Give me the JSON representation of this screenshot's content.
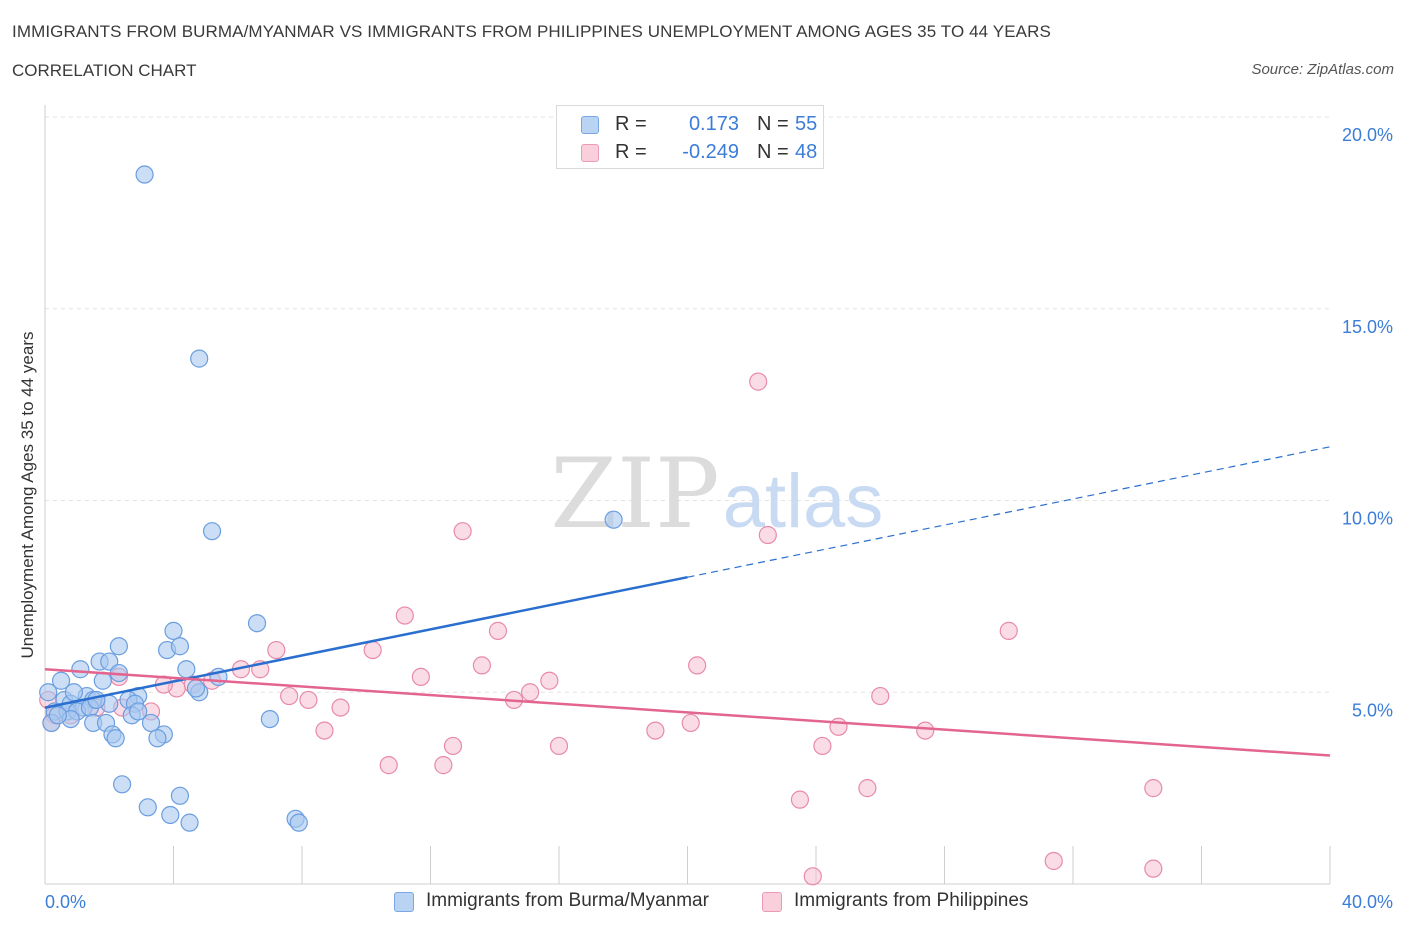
{
  "header": {
    "title": "IMMIGRANTS FROM BURMA/MYANMAR VS IMMIGRANTS FROM PHILIPPINES UNEMPLOYMENT AMONG AGES 35 TO 44 YEARS",
    "subtitle": "CORRELATION CHART",
    "source": "Source: ZipAtlas.com"
  },
  "legend": {
    "rows": [
      {
        "r_label": "R =",
        "r_value": "0.173",
        "n_label": "N =",
        "n_value": "55"
      },
      {
        "r_label": "R =",
        "r_value": "-0.249",
        "n_label": "N =",
        "n_value": "48"
      }
    ]
  },
  "watermark": {
    "zip": "ZIP",
    "atlas": "atlas"
  },
  "colors": {
    "blue_fill": "#a9c8f0",
    "blue_stroke": "#6a9ee0",
    "blue_line": "#2a6fcf",
    "pink_fill": "#f6bfd1",
    "pink_stroke": "#e88aaa",
    "pink_line": "#e3648f",
    "grid": "#e3e3e3",
    "axis_label": "#3b7dd8"
  },
  "chart_data": {
    "type": "scatter",
    "title": "IMMIGRANTS FROM BURMA/MYANMAR VS IMMIGRANTS FROM PHILIPPINES UNEMPLOYMENT AMONG AGES 35 TO 44 YEARS",
    "xlabel": "",
    "ylabel": "Unemployment Among Ages 35 to 44 years",
    "xlim": [
      0,
      40
    ],
    "ylim": [
      0,
      20
    ],
    "x_tick_labels": [
      "0.0%",
      "40.0%"
    ],
    "y_ticks": [
      5,
      10,
      15,
      20
    ],
    "y_tick_labels": [
      "5.0%",
      "10.0%",
      "15.0%",
      "20.0%"
    ],
    "grid": true,
    "legend_position": "bottom",
    "series": [
      {
        "name": "Immigrants from Burma/Myanmar",
        "color": "blue",
        "trend": {
          "x_start": 0,
          "y_start": 4.6,
          "x_solid_end": 20,
          "y_solid_end": 8.0,
          "x_end": 40,
          "y_end": 11.4
        },
        "points": [
          [
            3.1,
            18.5
          ],
          [
            4.8,
            13.7
          ],
          [
            5.2,
            9.2
          ],
          [
            6.6,
            6.8
          ],
          [
            4.0,
            6.6
          ],
          [
            2.3,
            6.2
          ],
          [
            3.8,
            6.1
          ],
          [
            4.2,
            6.2
          ],
          [
            1.7,
            5.8
          ],
          [
            2.0,
            5.8
          ],
          [
            1.1,
            5.6
          ],
          [
            2.3,
            5.5
          ],
          [
            4.4,
            5.6
          ],
          [
            0.5,
            5.3
          ],
          [
            1.8,
            5.3
          ],
          [
            5.4,
            5.4
          ],
          [
            0.1,
            5.0
          ],
          [
            2.9,
            4.9
          ],
          [
            4.8,
            5.0
          ],
          [
            0.6,
            4.8
          ],
          [
            1.3,
            4.9
          ],
          [
            1.5,
            4.8
          ],
          [
            2.6,
            4.8
          ],
          [
            0.8,
            4.7
          ],
          [
            1.2,
            4.6
          ],
          [
            2.0,
            4.7
          ],
          [
            2.8,
            4.7
          ],
          [
            0.3,
            4.5
          ],
          [
            0.7,
            4.5
          ],
          [
            1.0,
            4.5
          ],
          [
            1.4,
            4.6
          ],
          [
            2.7,
            4.4
          ],
          [
            0.2,
            4.2
          ],
          [
            0.8,
            4.3
          ],
          [
            1.5,
            4.2
          ],
          [
            1.9,
            4.2
          ],
          [
            3.3,
            4.2
          ],
          [
            2.1,
            3.9
          ],
          [
            3.7,
            3.9
          ],
          [
            2.2,
            3.8
          ],
          [
            3.5,
            3.8
          ],
          [
            7.0,
            4.3
          ],
          [
            2.4,
            2.6
          ],
          [
            3.2,
            2.0
          ],
          [
            4.2,
            2.3
          ],
          [
            3.9,
            1.8
          ],
          [
            4.5,
            1.6
          ],
          [
            7.8,
            1.7
          ],
          [
            7.9,
            1.6
          ],
          [
            17.7,
            9.5
          ],
          [
            0.4,
            4.4
          ],
          [
            1.6,
            4.8
          ],
          [
            2.9,
            4.5
          ],
          [
            0.9,
            5.0
          ],
          [
            4.7,
            5.1
          ]
        ]
      },
      {
        "name": "Immigrants from Philippines",
        "color": "pink",
        "trend": {
          "x_start": 0,
          "y_start": 5.6,
          "x_end": 40,
          "y_end": 3.35
        },
        "points": [
          [
            22.2,
            13.1
          ],
          [
            13.0,
            9.2
          ],
          [
            22.5,
            9.1
          ],
          [
            11.2,
            7.0
          ],
          [
            14.1,
            6.6
          ],
          [
            30.0,
            6.6
          ],
          [
            7.2,
            6.1
          ],
          [
            10.2,
            6.1
          ],
          [
            13.6,
            5.7
          ],
          [
            20.3,
            5.7
          ],
          [
            11.7,
            5.4
          ],
          [
            6.1,
            5.6
          ],
          [
            6.7,
            5.6
          ],
          [
            15.7,
            5.3
          ],
          [
            2.3,
            5.4
          ],
          [
            4.6,
            5.2
          ],
          [
            5.2,
            5.3
          ],
          [
            15.1,
            5.0
          ],
          [
            4.1,
            5.1
          ],
          [
            3.7,
            5.2
          ],
          [
            7.6,
            4.9
          ],
          [
            8.2,
            4.8
          ],
          [
            14.6,
            4.8
          ],
          [
            26.0,
            4.9
          ],
          [
            9.2,
            4.6
          ],
          [
            2.4,
            4.6
          ],
          [
            3.3,
            4.5
          ],
          [
            0.3,
            4.4
          ],
          [
            0.2,
            4.2
          ],
          [
            0.8,
            4.4
          ],
          [
            1.6,
            4.6
          ],
          [
            20.1,
            4.2
          ],
          [
            24.7,
            4.1
          ],
          [
            27.4,
            4.0
          ],
          [
            19.0,
            4.0
          ],
          [
            8.7,
            4.0
          ],
          [
            24.2,
            3.6
          ],
          [
            12.7,
            3.6
          ],
          [
            16.0,
            3.6
          ],
          [
            10.7,
            3.1
          ],
          [
            12.4,
            3.1
          ],
          [
            23.5,
            2.2
          ],
          [
            25.6,
            2.5
          ],
          [
            34.5,
            2.5
          ],
          [
            31.4,
            0.6
          ],
          [
            34.5,
            0.4
          ],
          [
            23.9,
            0.2
          ],
          [
            0.1,
            4.8
          ]
        ]
      }
    ]
  },
  "bottom_legend": {
    "items": [
      "Immigrants from Burma/Myanmar",
      "Immigrants from Philippines"
    ]
  }
}
